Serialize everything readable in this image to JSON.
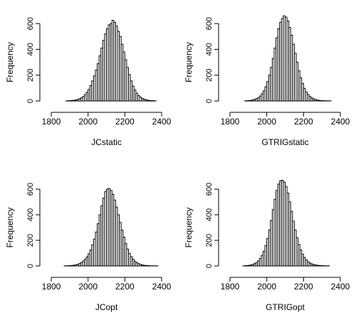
{
  "chart_data": [
    {
      "type": "bar",
      "xlabel": "JCstatic",
      "ylabel": "Frequency",
      "xlim": [
        1800,
        2400
      ],
      "ylim": [
        0,
        700
      ],
      "xticks": [
        "1800",
        "2000",
        "2200",
        "2400"
      ],
      "yticks": [
        "0",
        "200",
        "400",
        "600"
      ],
      "bin_start": 1880,
      "bin_width": 10,
      "values": [
        1,
        2,
        3,
        4,
        6,
        8,
        12,
        18,
        25,
        35,
        50,
        68,
        90,
        120,
        155,
        195,
        240,
        290,
        350,
        410,
        470,
        520,
        560,
        590,
        600,
        625,
        610,
        580,
        540,
        500,
        440,
        380,
        320,
        260,
        205,
        155,
        115,
        85,
        60,
        42,
        30,
        20,
        14,
        9,
        6,
        4,
        3,
        2,
        1
      ]
    },
    {
      "type": "bar",
      "xlabel": "GTRIGstatic",
      "ylabel": "Frequency",
      "xlim": [
        1800,
        2400
      ],
      "ylim": [
        0,
        700
      ],
      "xticks": [
        "1800",
        "2000",
        "2200",
        "2400"
      ],
      "yticks": [
        "0",
        "200",
        "400",
        "600"
      ],
      "bin_start": 1880,
      "bin_width": 10,
      "values": [
        1,
        2,
        3,
        5,
        8,
        12,
        18,
        26,
        38,
        55,
        78,
        110,
        150,
        200,
        260,
        330,
        410,
        490,
        560,
        610,
        640,
        660,
        650,
        620,
        570,
        510,
        440,
        370,
        300,
        235,
        180,
        135,
        98,
        70,
        50,
        35,
        24,
        16,
        11,
        7,
        5,
        3,
        2,
        2,
        1,
        1,
        1
      ]
    },
    {
      "type": "bar",
      "xlabel": "JCopt",
      "ylabel": "Frequency",
      "xlim": [
        1800,
        2400
      ],
      "ylim": [
        0,
        700
      ],
      "xticks": [
        "1800",
        "2000",
        "2200",
        "2400"
      ],
      "yticks": [
        "0",
        "200",
        "400",
        "600"
      ],
      "bin_start": 1870,
      "bin_width": 10,
      "values": [
        1,
        1,
        2,
        3,
        4,
        6,
        9,
        13,
        19,
        27,
        38,
        52,
        70,
        95,
        125,
        165,
        210,
        265,
        330,
        400,
        470,
        530,
        580,
        600,
        605,
        590,
        560,
        515,
        460,
        400,
        340,
        280,
        225,
        175,
        132,
        98,
        72,
        52,
        37,
        26,
        18,
        12,
        8,
        5,
        4,
        3,
        2,
        1,
        1,
        1,
        1
      ]
    },
    {
      "type": "bar",
      "xlabel": "GTRIGopt",
      "ylabel": "Frequency",
      "xlim": [
        1800,
        2400
      ],
      "ylim": [
        0,
        700
      ],
      "xticks": [
        "1800",
        "2000",
        "2200",
        "2400"
      ],
      "yticks": [
        "0",
        "200",
        "400",
        "600"
      ],
      "bin_start": 1870,
      "bin_width": 10,
      "values": [
        1,
        2,
        3,
        5,
        8,
        12,
        18,
        27,
        40,
        58,
        82,
        115,
        160,
        215,
        280,
        355,
        440,
        520,
        590,
        640,
        665,
        670,
        655,
        620,
        570,
        500,
        425,
        350,
        280,
        220,
        168,
        125,
        92,
        66,
        47,
        33,
        23,
        16,
        11,
        8,
        5,
        4,
        3,
        2,
        1,
        1,
        1
      ]
    }
  ]
}
